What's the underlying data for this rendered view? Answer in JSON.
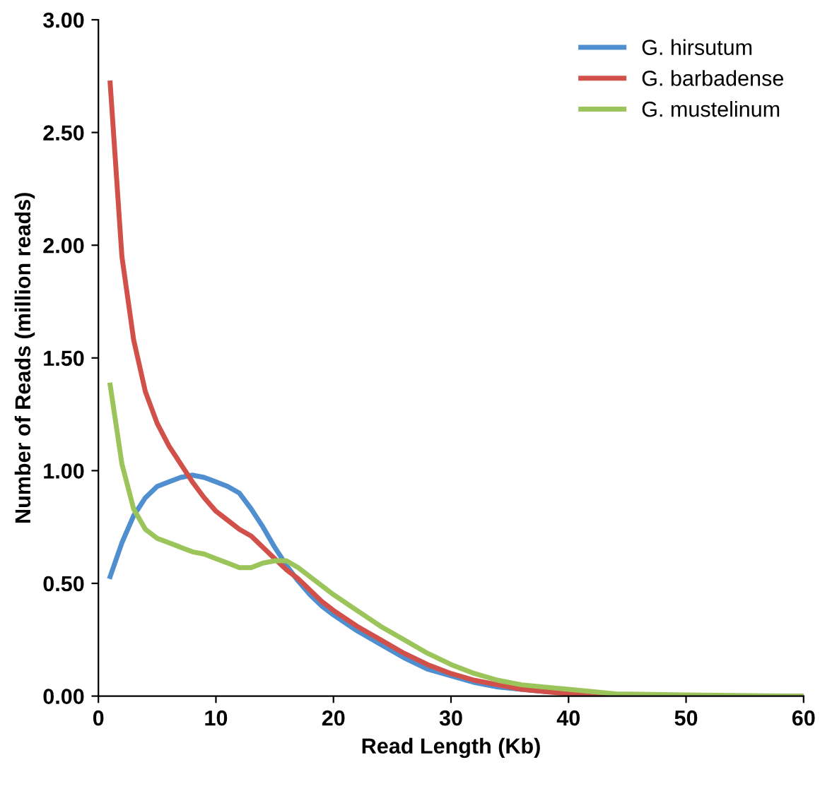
{
  "chart_data": {
    "type": "line",
    "xlabel": "Read Length (Kb)",
    "ylabel": "Number of Reads (million reads)",
    "xlim": [
      0,
      60
    ],
    "xticks": [
      0,
      10,
      20,
      30,
      40,
      50,
      60
    ],
    "ylim": [
      0,
      3
    ],
    "yticks": [
      {
        "value": 0,
        "label": "0.00"
      },
      {
        "value": 0.5,
        "label": "0.50"
      },
      {
        "value": 1,
        "label": "1.00"
      },
      {
        "value": 1.5,
        "label": "1.50"
      },
      {
        "value": 2,
        "label": "2.00"
      },
      {
        "value": 2.5,
        "label": "2.50"
      },
      {
        "value": 3,
        "label": "3.00"
      }
    ],
    "grid": false,
    "legend": "top right",
    "series": [
      {
        "name": "G. hirsutum",
        "color": "#4f8fd0",
        "x": [
          1,
          2,
          3,
          4,
          5,
          6,
          7,
          8,
          9,
          10,
          11,
          12,
          13,
          14,
          15,
          16,
          17,
          18,
          19,
          20,
          22,
          24,
          26,
          28,
          30,
          32,
          34,
          36,
          38
        ],
        "values": [
          0.53,
          0.68,
          0.8,
          0.88,
          0.93,
          0.95,
          0.97,
          0.98,
          0.97,
          0.95,
          0.93,
          0.9,
          0.83,
          0.75,
          0.66,
          0.58,
          0.51,
          0.45,
          0.4,
          0.36,
          0.29,
          0.23,
          0.17,
          0.12,
          0.09,
          0.06,
          0.04,
          0.03,
          0.02
        ]
      },
      {
        "name": "G. barbadense",
        "color": "#d2504a",
        "x": [
          1,
          2,
          3,
          4,
          5,
          6,
          7,
          8,
          9,
          10,
          11,
          12,
          13,
          14,
          15,
          16,
          17,
          18,
          19,
          20,
          22,
          24,
          26,
          28,
          30,
          32,
          34,
          36,
          38,
          40,
          42,
          45,
          60
        ],
        "values": [
          2.72,
          1.95,
          1.58,
          1.35,
          1.21,
          1.11,
          1.03,
          0.95,
          0.88,
          0.82,
          0.78,
          0.74,
          0.71,
          0.66,
          0.61,
          0.56,
          0.52,
          0.47,
          0.42,
          0.38,
          0.31,
          0.25,
          0.19,
          0.14,
          0.1,
          0.07,
          0.05,
          0.03,
          0.02,
          0.01,
          0.005,
          0,
          0
        ]
      },
      {
        "name": "G. mustelinum",
        "color": "#9bc55a",
        "x": [
          1,
          2,
          3,
          4,
          5,
          6,
          7,
          8,
          9,
          10,
          11,
          12,
          13,
          14,
          15,
          16,
          17,
          18,
          19,
          20,
          22,
          24,
          26,
          28,
          30,
          32,
          34,
          36,
          38,
          40,
          42,
          44,
          50,
          60
        ],
        "values": [
          1.38,
          1.03,
          0.83,
          0.74,
          0.7,
          0.68,
          0.66,
          0.64,
          0.63,
          0.61,
          0.59,
          0.57,
          0.57,
          0.59,
          0.6,
          0.6,
          0.57,
          0.53,
          0.49,
          0.45,
          0.38,
          0.31,
          0.25,
          0.19,
          0.14,
          0.1,
          0.07,
          0.05,
          0.04,
          0.03,
          0.02,
          0.01,
          0.005,
          0
        ]
      }
    ]
  }
}
